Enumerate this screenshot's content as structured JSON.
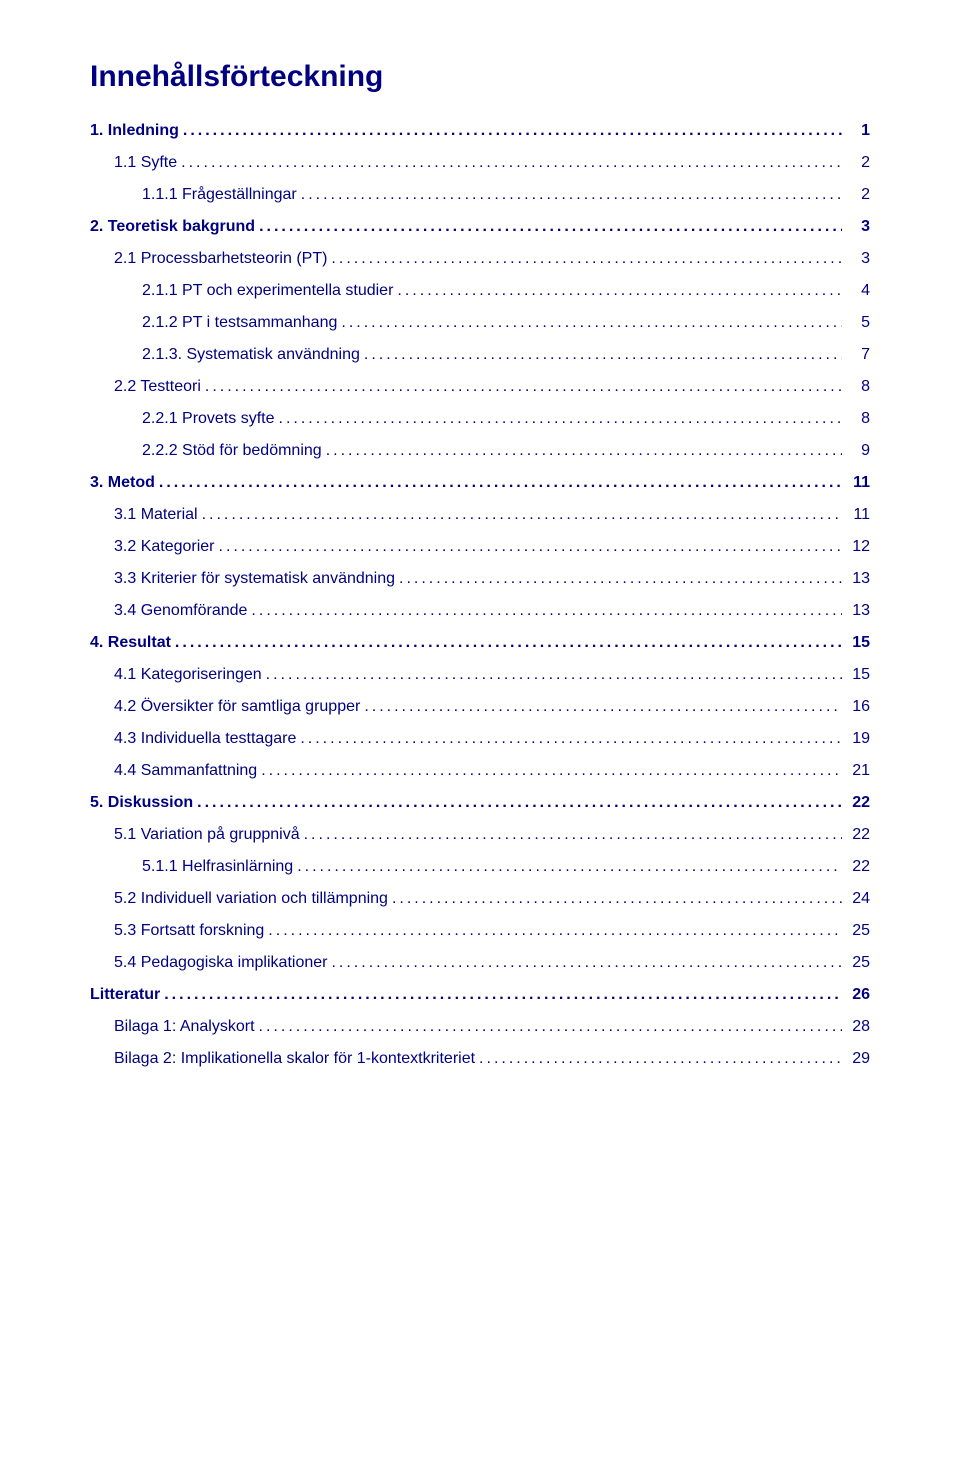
{
  "title": "Innehållsförteckning",
  "colors": {
    "text": "#000080",
    "background": "#ffffff"
  },
  "typography": {
    "title_fontsize": 30,
    "entry_fontsize": 16,
    "font_family": "Verdana"
  },
  "entries": [
    {
      "label": "1. Inledning",
      "page": "1",
      "level": 0
    },
    {
      "label": "1.1 Syfte",
      "page": "2",
      "level": 1
    },
    {
      "label": "1.1.1 Frågeställningar",
      "page": "2",
      "level": 2
    },
    {
      "label": "2. Teoretisk bakgrund",
      "page": "3",
      "level": 0
    },
    {
      "label": "2.1 Processbarhetsteorin (PT)",
      "page": "3",
      "level": 1
    },
    {
      "label": "2.1.1 PT och experimentella studier",
      "page": "4",
      "level": 2
    },
    {
      "label": "2.1.2 PT i testsammanhang",
      "page": "5",
      "level": 2
    },
    {
      "label": "2.1.3. Systematisk användning",
      "page": "7",
      "level": 2
    },
    {
      "label": "2.2 Testteori",
      "page": "8",
      "level": 1
    },
    {
      "label": "2.2.1 Provets syfte",
      "page": "8",
      "level": 2
    },
    {
      "label": "2.2.2 Stöd för bedömning",
      "page": "9",
      "level": 2
    },
    {
      "label": "3. Metod",
      "page": "11",
      "level": 0
    },
    {
      "label": "3.1 Material",
      "page": "11",
      "level": 1
    },
    {
      "label": "3.2 Kategorier",
      "page": "12",
      "level": 1
    },
    {
      "label": "3.3 Kriterier för systematisk användning",
      "page": "13",
      "level": 1
    },
    {
      "label": "3.4 Genomförande",
      "page": "13",
      "level": 1
    },
    {
      "label": "4. Resultat",
      "page": "15",
      "level": 0
    },
    {
      "label": "4.1 Kategoriseringen",
      "page": "15",
      "level": 1
    },
    {
      "label": "4.2 Översikter för samtliga grupper",
      "page": "16",
      "level": 1
    },
    {
      "label": "4.3 Individuella testtagare",
      "page": "19",
      "level": 1
    },
    {
      "label": "4.4 Sammanfattning",
      "page": "21",
      "level": 1
    },
    {
      "label": "5. Diskussion",
      "page": "22",
      "level": 0
    },
    {
      "label": "5.1 Variation på gruppnivå",
      "page": "22",
      "level": 1
    },
    {
      "label": "5.1.1 Helfrasinlärning",
      "page": "22",
      "level": 2
    },
    {
      "label": "5.2 Individuell variation och tillämpning",
      "page": "24",
      "level": 1
    },
    {
      "label": "5.3 Fortsatt forskning",
      "page": "25",
      "level": 1
    },
    {
      "label": "5.4 Pedagogiska implikationer",
      "page": "25",
      "level": 1
    },
    {
      "label": "Litteratur",
      "page": "26",
      "level": 0
    },
    {
      "label": "Bilaga 1: Analyskort",
      "page": "28",
      "level": 1
    },
    {
      "label": "Bilaga 2: Implikationella skalor för 1-kontextkriteriet",
      "page": "29",
      "level": 1
    }
  ]
}
